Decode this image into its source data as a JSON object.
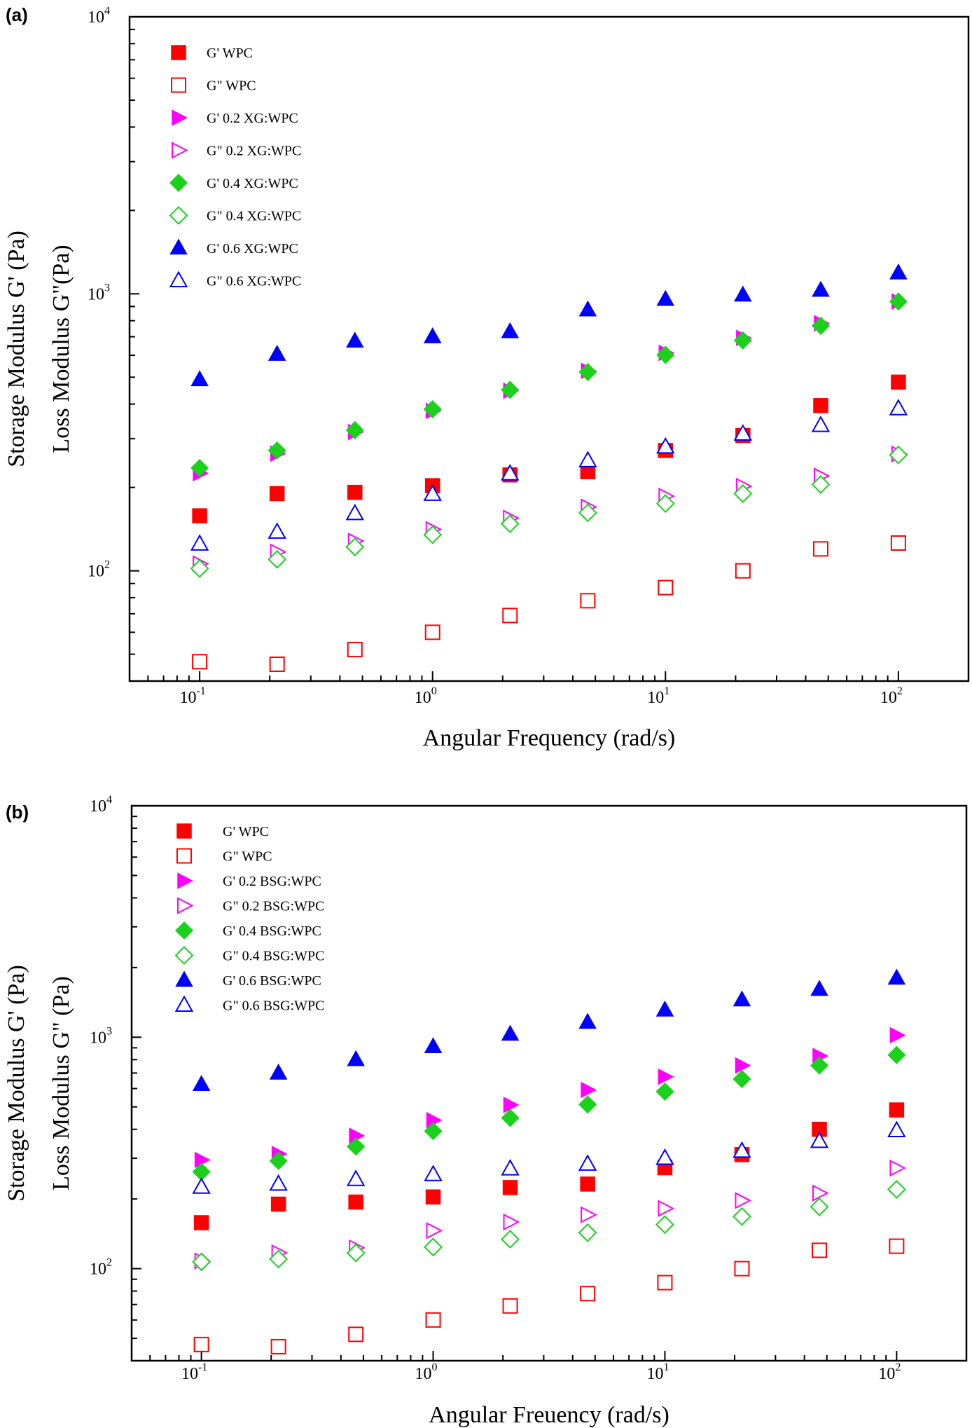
{
  "colors": {
    "red": "#ff0000",
    "magenta": "#ff00ff",
    "green": "#1bd11b",
    "blue": "#0000ff",
    "axis": "#000000"
  },
  "chart_data": [
    {
      "type": "scatter",
      "panel_label": "(a)",
      "xlabel": "Angular Frequency (rad/s)",
      "ylabel_line1": "Storage Modulus G' (Pa)",
      "ylabel_line2": "Loss Modulus G\"(Pa)",
      "x_scale": "log",
      "y_scale": "log",
      "xlim": [
        0.05,
        200
      ],
      "ylim": [
        40,
        10000
      ],
      "x_ticks": [
        "10^-1",
        "10^0",
        "10^1",
        "10^2"
      ],
      "y_ticks": [
        "10^2",
        "10^3",
        "10^4"
      ],
      "x": [
        0.1,
        0.215,
        0.464,
        1,
        2.15,
        4.64,
        10,
        21.5,
        46.4,
        100
      ],
      "legend_position": "top-left",
      "series": [
        {
          "name": "G' WPC",
          "marker": "square",
          "filled": true,
          "color": "red",
          "values": [
            158,
            190,
            192,
            203,
            222,
            228,
            272,
            308,
            395,
            480
          ]
        },
        {
          "name": "G\" WPC",
          "marker": "square",
          "filled": false,
          "color": "red",
          "values": [
            47,
            46,
            52,
            60,
            69,
            78,
            87,
            100,
            120,
            126
          ]
        },
        {
          "name": "G' 0.2 XG:WPC",
          "marker": "triangle-right",
          "filled": true,
          "color": "magenta",
          "values": [
            225,
            265,
            317,
            378,
            447,
            527,
            612,
            693,
            783,
            938
          ]
        },
        {
          "name": "G\" 0.2 XG:WPC",
          "marker": "triangle-right",
          "filled": false,
          "color": "magenta",
          "values": [
            106,
            117,
            128,
            141,
            155,
            170,
            186,
            202,
            220,
            264
          ]
        },
        {
          "name": "G' 0.4 XG:WPC",
          "marker": "diamond",
          "filled": true,
          "color": "green",
          "values": [
            235,
            272,
            322,
            383,
            450,
            522,
            602,
            679,
            767,
            938
          ]
        },
        {
          "name": "G\" 0.4 XG:WPC",
          "marker": "diamond",
          "filled": false,
          "color": "green",
          "values": [
            102,
            110,
            122,
            135,
            148,
            162,
            175,
            190,
            205,
            262
          ]
        },
        {
          "name": "G' 0.6 XG:WPC",
          "marker": "triangle-up",
          "filled": true,
          "color": "blue",
          "values": [
            490,
            605,
            675,
            700,
            730,
            875,
            955,
            990,
            1030,
            1190
          ]
        },
        {
          "name": "G\" 0.6 XG:WPC",
          "marker": "triangle-up",
          "filled": false,
          "color": "blue",
          "values": [
            125,
            138,
            161,
            189,
            224,
            250,
            280,
            312,
            335,
            385
          ]
        }
      ]
    },
    {
      "type": "scatter",
      "panel_label": "(b)",
      "xlabel": "Angular Freuency (rad/s)",
      "ylabel_line1": "Storage Modulus G' (Pa)",
      "ylabel_line2": "Loss Modulus G\" (Pa)",
      "x_scale": "log",
      "y_scale": "log",
      "xlim": [
        0.05,
        200
      ],
      "ylim": [
        40,
        10000
      ],
      "x_ticks": [
        "10^-1",
        "10^0",
        "10^1",
        "10^2"
      ],
      "y_ticks": [
        "10^2",
        "10^3",
        "10^4"
      ],
      "x": [
        0.1,
        0.215,
        0.464,
        1,
        2.15,
        4.64,
        10,
        21.5,
        46.4,
        100
      ],
      "legend_position": "top-left",
      "series": [
        {
          "name": "G' WPC",
          "marker": "square",
          "filled": true,
          "color": "red",
          "values": [
            158,
            190,
            194,
            204,
            224,
            232,
            273,
            311,
            400,
            485
          ]
        },
        {
          "name": "G\" WPC",
          "marker": "square",
          "filled": false,
          "color": "red",
          "values": [
            47,
            46,
            52,
            60,
            69,
            78,
            87,
            100,
            120,
            125
          ]
        },
        {
          "name": "G' 0.2 BSG:WPC",
          "marker": "triangle-right",
          "filled": true,
          "color": "magenta",
          "values": [
            295,
            313,
            375,
            438,
            510,
            592,
            675,
            755,
            830,
            1020
          ]
        },
        {
          "name": "G\" 0.2 BSG:WPC",
          "marker": "triangle-right",
          "filled": false,
          "color": "magenta",
          "values": [
            108,
            117,
            123,
            146,
            159,
            171,
            182,
            197,
            212,
            272
          ]
        },
        {
          "name": "G' 0.4 BSG:WPC",
          "marker": "diamond",
          "filled": true,
          "color": "green",
          "values": [
            262,
            292,
            337,
            393,
            448,
            512,
            582,
            660,
            755,
            838
          ]
        },
        {
          "name": "G\" 0.4 BSG:WPC",
          "marker": "diamond",
          "filled": false,
          "color": "green",
          "values": [
            107,
            110,
            117,
            124,
            134,
            143,
            155,
            168,
            185,
            220
          ]
        },
        {
          "name": "G' 0.6 BSG:WPC",
          "marker": "triangle-up",
          "filled": true,
          "color": "blue",
          "values": [
            625,
            700,
            800,
            910,
            1030,
            1160,
            1310,
            1450,
            1610,
            1800
          ]
        },
        {
          "name": "G\" 0.6 BSG:WPC",
          "marker": "triangle-up",
          "filled": false,
          "color": "blue",
          "values": [
            225,
            232,
            243,
            255,
            270,
            283,
            300,
            322,
            355,
            395
          ]
        }
      ]
    }
  ]
}
